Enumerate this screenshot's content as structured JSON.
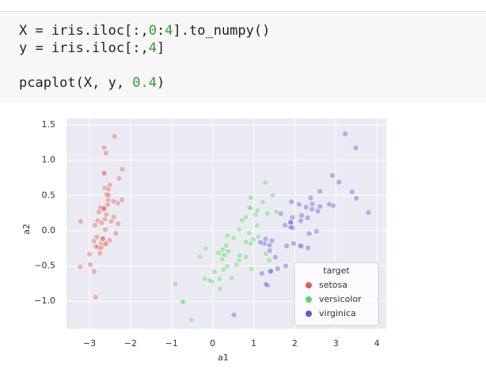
{
  "code": {
    "lines": [
      [
        "X = iris.iloc[:,",
        "0",
        ":",
        "4",
        "].to_numpy()"
      ],
      [
        "y = iris.iloc[:,",
        "4",
        "]"
      ],
      [
        "pcaplot(X, y, ",
        "0.4",
        ")"
      ]
    ]
  },
  "chart_data": {
    "type": "scatter",
    "xlabel": "a1",
    "ylabel": "a2",
    "xlim": [
      -3.56,
      4.23
    ],
    "ylim": [
      -1.39,
      1.59
    ],
    "xticks": [
      {
        "value": -3,
        "label": "−3"
      },
      {
        "value": -2,
        "label": "−2"
      },
      {
        "value": -1,
        "label": "−1"
      },
      0,
      1,
      2,
      3,
      4
    ],
    "yticks": [
      {
        "value": -1.0,
        "label": "−1.0"
      },
      {
        "value": -0.5,
        "label": "−0.5"
      },
      {
        "value": 0.0,
        "label": "0.0"
      },
      {
        "value": 0.5,
        "label": "0.5"
      },
      {
        "value": 1.0,
        "label": "1.0"
      },
      1.5
    ],
    "grid": true,
    "alpha": 0.4,
    "legend": "lower right",
    "legend_title": "target",
    "series": [
      {
        "name": "setosa",
        "color": "#db5f57",
        "x": [
          -2.684,
          -2.714,
          -2.889,
          -2.745,
          -2.729,
          -2.281,
          -2.821,
          -2.626,
          -2.886,
          -2.673,
          -2.507,
          -2.613,
          -2.787,
          -3.225,
          -2.644,
          -2.386,
          -2.623,
          -2.648,
          -2.199,
          -2.588,
          -2.31,
          -2.544,
          -3.216,
          -2.303,
          -2.356,
          -2.508,
          -2.469,
          -2.562,
          -2.64,
          -2.632,
          -2.588,
          -2.41,
          -2.648,
          -2.597,
          -2.673,
          -2.867,
          -2.625,
          -2.8,
          -2.981,
          -2.59,
          -2.77,
          -2.851,
          -2.998,
          -2.406,
          -2.209,
          -2.716,
          -2.538,
          -2.84,
          -2.542,
          -2.704
        ],
        "values": [
          0.319,
          -0.177,
          -0.145,
          -0.318,
          0.327,
          0.741,
          -0.089,
          0.163,
          -0.578,
          -0.114,
          0.645,
          0.015,
          -0.235,
          -0.511,
          1.178,
          1.338,
          0.811,
          0.312,
          0.873,
          0.514,
          0.391,
          0.433,
          0.133,
          0.098,
          -0.037,
          -0.135,
          0.135,
          0.368,
          0.312,
          -0.197,
          -0.18,
          0.419,
          0.818,
          1.1,
          -0.114,
          0.077,
          0.607,
          0.141,
          -0.48,
          0.229,
          0.264,
          -0.941,
          -0.334,
          0.195,
          0.44,
          -0.243,
          0.504,
          -0.223,
          0.588,
          0.112
        ]
      },
      {
        "name": "versicolor",
        "color": "#57db5f",
        "x": [
          1.285,
          0.932,
          1.464,
          0.181,
          1.087,
          0.64,
          1.095,
          -0.751,
          1.043,
          -0.01,
          -0.511,
          0.512,
          0.264,
          0.984,
          -0.174,
          0.928,
          0.66,
          0.236,
          0.944,
          0.045,
          1.116,
          0.358,
          1.298,
          0.921,
          0.715,
          0.9,
          1.332,
          1.558,
          0.813,
          -0.306,
          -0.068,
          -0.19,
          0.136,
          1.38,
          0.588,
          0.807,
          1.22,
          0.815,
          0.246,
          0.166,
          0.464,
          0.89,
          0.231,
          -0.705,
          0.357,
          0.332,
          0.376,
          0.643,
          -0.907,
          0.299
        ],
        "values": [
          0.685,
          0.318,
          0.504,
          -0.826,
          0.075,
          -0.418,
          0.284,
          -1.004,
          0.228,
          -0.723,
          -1.265,
          -0.104,
          -0.55,
          -0.125,
          -0.255,
          0.467,
          -0.353,
          -0.333,
          -0.543,
          -0.584,
          -0.084,
          -0.069,
          -0.328,
          -0.183,
          0.149,
          0.329,
          0.244,
          0.267,
          -0.163,
          -0.368,
          -0.705,
          -0.68,
          -0.314,
          -0.421,
          -0.484,
          0.194,
          0.408,
          -0.372,
          -0.269,
          -0.682,
          -0.67,
          -0.034,
          -0.404,
          -1.012,
          -0.505,
          -0.212,
          -0.293,
          0.018,
          -0.756,
          -0.349
        ]
      },
      {
        "name": "virginica",
        "color": "#5f57db",
        "x": [
          2.531,
          1.414,
          2.616,
          1.971,
          2.35,
          3.397,
          0.521,
          2.933,
          2.321,
          2.916,
          1.662,
          1.803,
          2.166,
          1.344,
          1.585,
          1.905,
          1.949,
          3.488,
          3.795,
          1.3,
          2.428,
          1.199,
          3.5,
          1.388,
          2.276,
          2.614,
          1.258,
          1.291,
          2.123,
          2.388,
          2.842,
          3.231,
          2.159,
          1.444,
          1.78,
          3.077,
          2.145,
          1.905,
          1.169,
          2.108,
          2.314,
          1.922,
          1.414,
          2.563,
          2.419,
          1.944,
          1.527,
          1.764,
          1.901,
          1.39
        ],
        "values": [
          -0.01,
          -0.575,
          0.343,
          -0.18,
          -0.041,
          0.551,
          -1.193,
          0.356,
          -0.244,
          0.783,
          0.242,
          -0.216,
          0.216,
          -0.776,
          -0.54,
          0.119,
          0.041,
          1.175,
          0.257,
          -0.761,
          0.378,
          -0.606,
          0.46,
          -0.204,
          0.333,
          0.558,
          -0.179,
          -0.117,
          -0.21,
          0.465,
          0.375,
          1.374,
          -0.218,
          -0.143,
          -0.5,
          0.688,
          0.14,
          0.049,
          -0.165,
          0.372,
          0.184,
          0.409,
          -0.575,
          0.278,
          0.305,
          0.188,
          -0.375,
          0.079,
          0.117,
          -0.283
        ]
      }
    ]
  }
}
